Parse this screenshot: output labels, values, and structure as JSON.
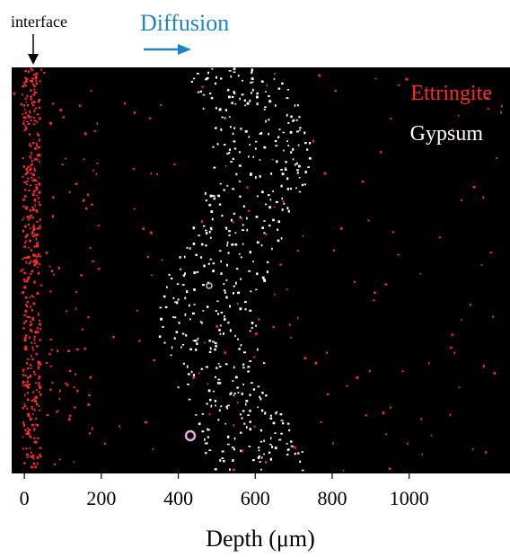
{
  "chart_data": {
    "type": "image",
    "annotations": [
      "interface",
      "Diffusion"
    ],
    "series": [
      {
        "name": "Ettringite",
        "color": "#ff2a2a"
      },
      {
        "name": "Gypsum",
        "color": "#ffffff"
      }
    ],
    "xlabel": "Depth (μm)",
    "xlim": [
      -33,
      1262
    ],
    "xticks": [
      0,
      200,
      400,
      600,
      800,
      1000
    ],
    "annotation_color": "#1a86c8"
  }
}
